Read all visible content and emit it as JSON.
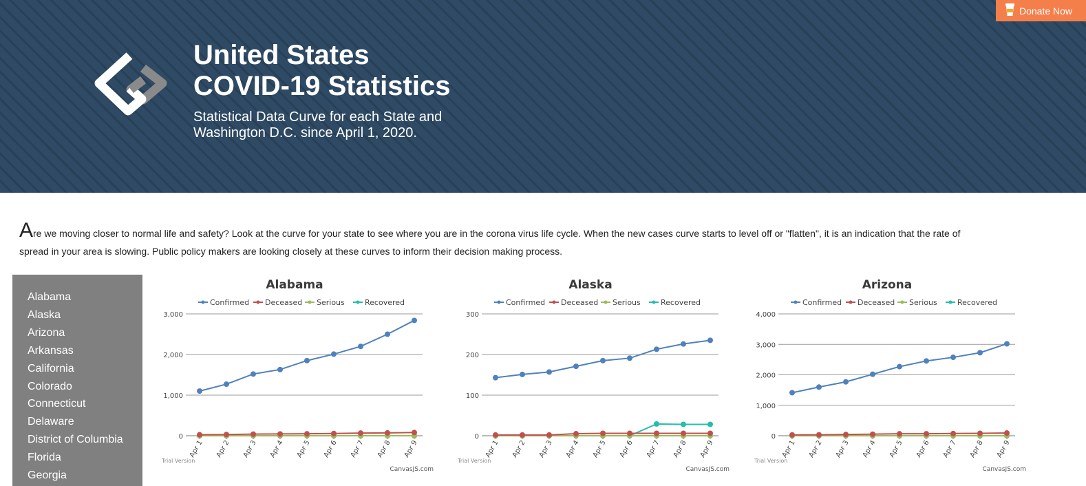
{
  "header": {
    "title_line1": "United States",
    "title_line2": "COVID-19 Statistics",
    "subtitle_line1": "Statistical Data Curve for each State and",
    "subtitle_line2": "Washington D.C. since April 1, 2020.",
    "donate_label": "Donate Now",
    "donate_icon": "coffee-cup-icon",
    "logo_icon": "interlocking-diamonds-logo"
  },
  "intro": {
    "dropcap": "A",
    "text": "re we moving closer to normal life and safety? Look at the curve for your state to see where you are in the corona virus life cycle. When the new cases curve starts to level off or \"flatten\", it is an indication that the rate of spread in your area is slowing. Public policy makers are looking closely at these curves to inform their decision making process."
  },
  "sidebar": {
    "items": [
      "Alabama",
      "Alaska",
      "Arizona",
      "Arkansas",
      "California",
      "Colorado",
      "Connecticut",
      "Delaware",
      "District of Columbia",
      "Florida",
      "Georgia"
    ]
  },
  "colors": {
    "header_bg": "#2e4a64",
    "donate_bg": "#f57f4b",
    "sidebar_bg": "#808080",
    "confirmed": "#4f81bc",
    "deceased": "#c0504e",
    "serious": "#9bbb58",
    "recovered": "#23bfaa"
  },
  "chart_data": [
    {
      "type": "line",
      "title": "Alabama",
      "categories": [
        "Apr 1",
        "Apr 2",
        "Apr 3",
        "Apr 4",
        "Apr 5",
        "Apr 6",
        "Apr 7",
        "Apr 8",
        "Apr 9"
      ],
      "ylim": [
        0,
        3000
      ],
      "yticks": [
        0,
        1000,
        2000,
        3000
      ],
      "grid": true,
      "legend": "top",
      "watermark": "Trial Version",
      "credit": "CanvasJS.com",
      "series": [
        {
          "name": "Confirmed",
          "color": "#4f81bc",
          "values": [
            1100,
            1270,
            1520,
            1630,
            1850,
            2010,
            2200,
            2500,
            2840
          ]
        },
        {
          "name": "Deceased",
          "color": "#c0504e",
          "values": [
            25,
            30,
            40,
            45,
            48,
            55,
            65,
            70,
            80
          ]
        },
        {
          "name": "Serious",
          "color": "#9bbb58",
          "values": [
            0,
            0,
            0,
            0,
            0,
            0,
            0,
            0,
            0
          ]
        },
        {
          "name": "Recovered",
          "color": "#23bfaa",
          "values": [
            0,
            0,
            0,
            0,
            0,
            0,
            0,
            0,
            0
          ]
        }
      ]
    },
    {
      "type": "line",
      "title": "Alaska",
      "categories": [
        "Apr 1",
        "Apr 2",
        "Apr 3",
        "Apr 4",
        "Apr 5",
        "Apr 6",
        "Apr 7",
        "Apr 8",
        "Apr 9"
      ],
      "ylim": [
        0,
        300
      ],
      "yticks": [
        0,
        100,
        200,
        300
      ],
      "grid": true,
      "legend": "top",
      "watermark": "Trial Version",
      "credit": "CanvasJS.com",
      "series": [
        {
          "name": "Confirmed",
          "color": "#4f81bc",
          "values": [
            143,
            151,
            157,
            171,
            185,
            191,
            213,
            226,
            235
          ]
        },
        {
          "name": "Deceased",
          "color": "#c0504e",
          "values": [
            2,
            2,
            2,
            5,
            6,
            6,
            6,
            6,
            6
          ]
        },
        {
          "name": "Serious",
          "color": "#9bbb58",
          "values": [
            0,
            0,
            0,
            0,
            0,
            0,
            0,
            0,
            0
          ]
        },
        {
          "name": "Recovered",
          "color": "#23bfaa",
          "values": [
            0,
            0,
            0,
            0,
            0,
            0,
            29,
            28,
            28
          ]
        }
      ]
    },
    {
      "type": "line",
      "title": "Arizona",
      "categories": [
        "Apr 1",
        "Apr 2",
        "Apr 3",
        "Apr 4",
        "Apr 5",
        "Apr 6",
        "Apr 7",
        "Apr 8",
        "Apr 9"
      ],
      "ylim": [
        0,
        4000
      ],
      "yticks": [
        0,
        1000,
        2000,
        3000,
        4000
      ],
      "grid": true,
      "legend": "top",
      "watermark": "Trial Version",
      "credit": "CanvasJS.com",
      "series": [
        {
          "name": "Confirmed",
          "color": "#4f81bc",
          "values": [
            1413,
            1598,
            1769,
            2019,
            2269,
            2456,
            2575,
            2726,
            3018
          ]
        },
        {
          "name": "Deceased",
          "color": "#c0504e",
          "values": [
            29,
            32,
            41,
            52,
            64,
            65,
            73,
            80,
            89
          ]
        },
        {
          "name": "Serious",
          "color": "#9bbb58",
          "values": [
            0,
            0,
            0,
            0,
            0,
            0,
            0,
            0,
            0
          ]
        },
        {
          "name": "Recovered",
          "color": "#23bfaa",
          "values": [
            0,
            0,
            0,
            0,
            0,
            0,
            0,
            0,
            0
          ]
        }
      ]
    }
  ]
}
